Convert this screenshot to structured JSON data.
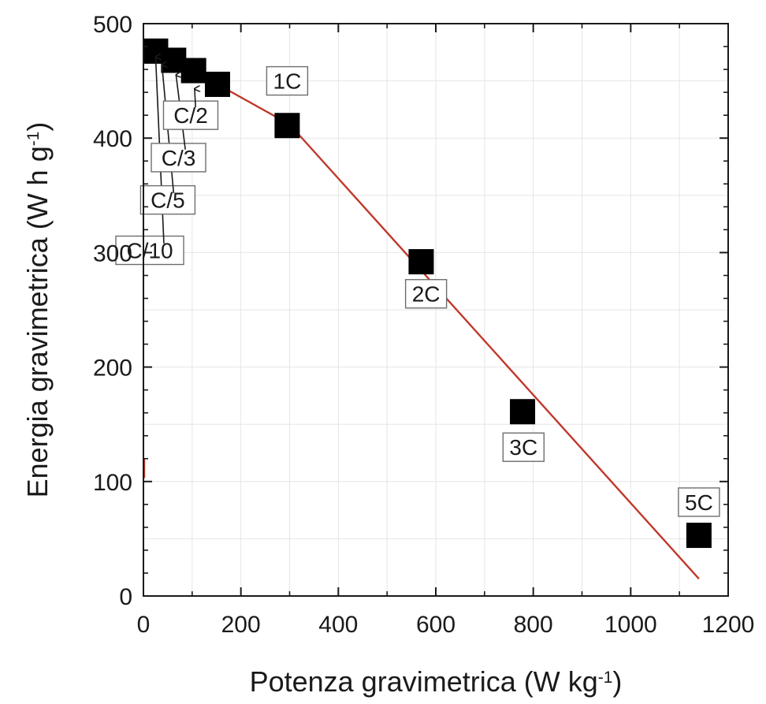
{
  "chart_data": {
    "type": "scatter",
    "title": "",
    "xlabel": "Potenza gravimetrica (W kg",
    "xlabel_sup": "-1",
    "xlabel_end": ")",
    "ylabel": "Energia gravimetrica (W h g",
    "ylabel_sup": "-1",
    "ylabel_end": ")",
    "xlim": [
      0,
      1200
    ],
    "ylim": [
      0,
      500
    ],
    "xticks": [
      "0",
      "200",
      "400",
      "600",
      "800",
      "1000",
      "1200"
    ],
    "xtick_values": [
      0,
      200,
      400,
      600,
      800,
      1000,
      1200
    ],
    "yticks": [
      "0",
      "100",
      "200",
      "300",
      "400",
      "500"
    ],
    "ytick_values": [
      0,
      100,
      200,
      300,
      400,
      500
    ],
    "grid": true,
    "colors": {
      "points": "#000000",
      "fit_line": "#c0392b",
      "grid": "#e6e6e6",
      "axis": "#1a1a1a"
    },
    "series": [
      {
        "marker": "square",
        "points": [
          {
            "label": "C/10",
            "x": 25,
            "y": 476
          },
          {
            "label": "C/5",
            "x": 62,
            "y": 468
          },
          {
            "label": "C/3",
            "x": 103,
            "y": 459
          },
          {
            "label": "C/2",
            "x": 152,
            "y": 447
          },
          {
            "label": "1C",
            "x": 295,
            "y": 411
          },
          {
            "label": "2C",
            "x": 570,
            "y": 292
          },
          {
            "label": "3C",
            "x": 778,
            "y": 161
          },
          {
            "label": "5C",
            "x": 1140,
            "y": 53
          }
        ]
      }
    ],
    "fit_line": [
      {
        "x": 0,
        "y": 483
      },
      {
        "x": 300,
        "y": 412
      },
      {
        "x": 1140,
        "y": 15
      }
    ],
    "fit_line_stub": [
      {
        "x": 0,
        "y": 120
      },
      {
        "x": 0,
        "y": 103
      }
    ],
    "annotations": [
      {
        "text": "C/10",
        "point": 0,
        "box": [
          13,
          302
        ],
        "arrow_to": [
          25,
          471
        ],
        "arrow_from": [
          42,
          308
        ]
      },
      {
        "text": "C/5",
        "point": 1,
        "box": [
          50,
          346
        ],
        "arrow_to": [
          38,
          464
        ],
        "arrow_from": [
          62,
          352
        ]
      },
      {
        "text": "C/3",
        "point": 2,
        "box": [
          72,
          383
        ],
        "arrow_to": [
          67,
          455
        ],
        "arrow_from": [
          86,
          390
        ]
      },
      {
        "text": "C/2",
        "point": 3,
        "box": [
          97,
          420
        ],
        "arrow_to": [
          105,
          443
        ],
        "arrow_from": [
          107,
          427
        ]
      },
      {
        "text": "1C",
        "point": 4,
        "box": [
          295,
          450
        ]
      },
      {
        "text": "2C",
        "point": 5,
        "box": [
          580,
          264
        ]
      },
      {
        "text": "3C",
        "point": 6,
        "box": [
          780,
          130
        ]
      },
      {
        "text": "5C",
        "point": 7,
        "box": [
          1140,
          82
        ]
      }
    ]
  }
}
